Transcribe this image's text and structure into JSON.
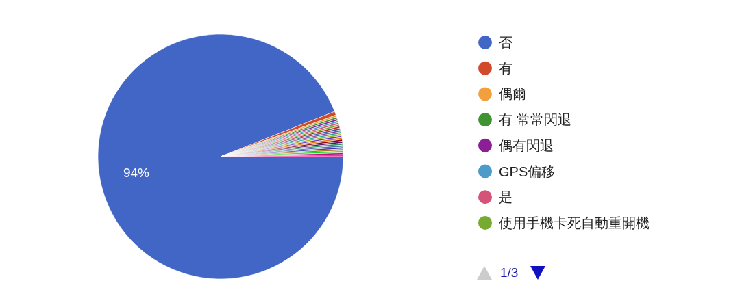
{
  "chart_data": {
    "type": "pie",
    "categories": [
      "否",
      "有",
      "偶爾",
      "有 常常閃退",
      "偶有閃退",
      "GPS偏移",
      "是",
      "使用手機卡死自動重開機",
      null,
      null,
      null,
      null,
      null,
      null,
      null,
      null,
      null,
      null,
      null,
      null,
      null,
      null,
      null,
      null
    ],
    "values": [
      94,
      0.5,
      0.25,
      0.25,
      0.25,
      0.25,
      0.25,
      0.25,
      0.25,
      0.25,
      0.25,
      0.25,
      0.25,
      0.25,
      0.25,
      0.25,
      0.25,
      0.25,
      0.25,
      0.25,
      0.25,
      0.25,
      0.25,
      0.25
    ],
    "colors": [
      "#4166c6",
      "#d04a2b",
      "#f2a03d",
      "#3d9430",
      "#8c1f96",
      "#4b9cc8",
      "#d45479",
      "#77aa30",
      "#b82e2e",
      "#316395",
      "#994499",
      "#22aa99",
      "#aaaa11",
      "#6633cc",
      "#e67300",
      "#8b0707",
      "#651067",
      "#329262",
      "#5574a6",
      "#3b3eac",
      "#b77322",
      "#16d620",
      "#b91383",
      "#f4359e"
    ],
    "value_labels": [
      "94%",
      null,
      null,
      null,
      null,
      null,
      null,
      null,
      null,
      null,
      null,
      null,
      null,
      null,
      null,
      null,
      null,
      null,
      null,
      null,
      null,
      null,
      null,
      null
    ],
    "legend": "right",
    "annotations": [
      "1/3"
    ]
  }
}
